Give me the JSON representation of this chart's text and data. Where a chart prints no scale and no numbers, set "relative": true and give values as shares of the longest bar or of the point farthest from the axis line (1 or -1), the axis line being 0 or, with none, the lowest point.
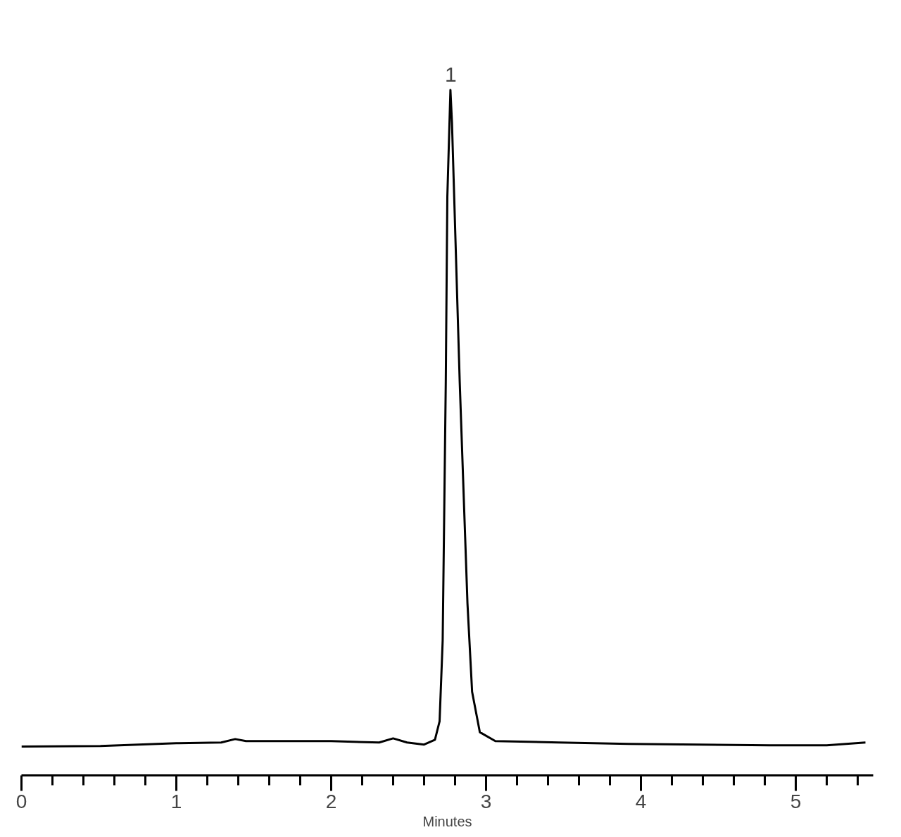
{
  "chart_data": {
    "type": "line",
    "relative": true,
    "xlabel": "Minutes",
    "xlim": [
      0,
      5.5
    ],
    "xticks": [
      0,
      {
        "value": 0.2,
        "label": null
      },
      {
        "value": 0.4,
        "label": null
      },
      {
        "value": 0.6,
        "label": null
      },
      {
        "value": 0.8,
        "label": null
      },
      1,
      {
        "value": 1.2,
        "label": null
      },
      {
        "value": 1.4,
        "label": null
      },
      {
        "value": 1.6,
        "label": null
      },
      {
        "value": 1.8,
        "label": null
      },
      2,
      {
        "value": 2.2,
        "label": null
      },
      {
        "value": 2.4,
        "label": null
      },
      {
        "value": 2.6,
        "label": null
      },
      {
        "value": 2.8,
        "label": null
      },
      3,
      {
        "value": 3.2,
        "label": null
      },
      {
        "value": 3.4,
        "label": null
      },
      {
        "value": 3.6,
        "label": null
      },
      {
        "value": 3.8,
        "label": null
      },
      4,
      {
        "value": 4.2,
        "label": null
      },
      {
        "value": 4.4,
        "label": null
      },
      {
        "value": 4.6,
        "label": null
      },
      {
        "value": 4.8,
        "label": null
      },
      5,
      {
        "value": 5.2,
        "label": null
      },
      {
        "value": 5.4,
        "label": null
      }
    ],
    "x": [
      0,
      0.51,
      1.0,
      1.29,
      1.38,
      1.45,
      2.0,
      2.31,
      2.4,
      2.49,
      2.6,
      2.67,
      2.7,
      2.72,
      2.74,
      2.75,
      2.77,
      2.78,
      2.83,
      2.88,
      2.91,
      2.96,
      3.06,
      3.47,
      3.92,
      4.38,
      4.83,
      5.2,
      5.45
    ],
    "series": [
      {
        "color": "#000000",
        "values": [
          0.042,
          0.043,
          0.047,
          0.048,
          0.053,
          0.05,
          0.05,
          0.048,
          0.054,
          0.048,
          0.045,
          0.052,
          0.079,
          0.197,
          0.574,
          0.844,
          1.0,
          0.952,
          0.574,
          0.251,
          0.122,
          0.063,
          0.05,
          0.048,
          0.046,
          0.045,
          0.044,
          0.044,
          0.048
        ]
      }
    ],
    "annotations": [
      {
        "text": "1",
        "x": 2.77,
        "y": 1.0
      }
    ],
    "grid": false,
    "marker": "none",
    "line_style": "solid"
  }
}
